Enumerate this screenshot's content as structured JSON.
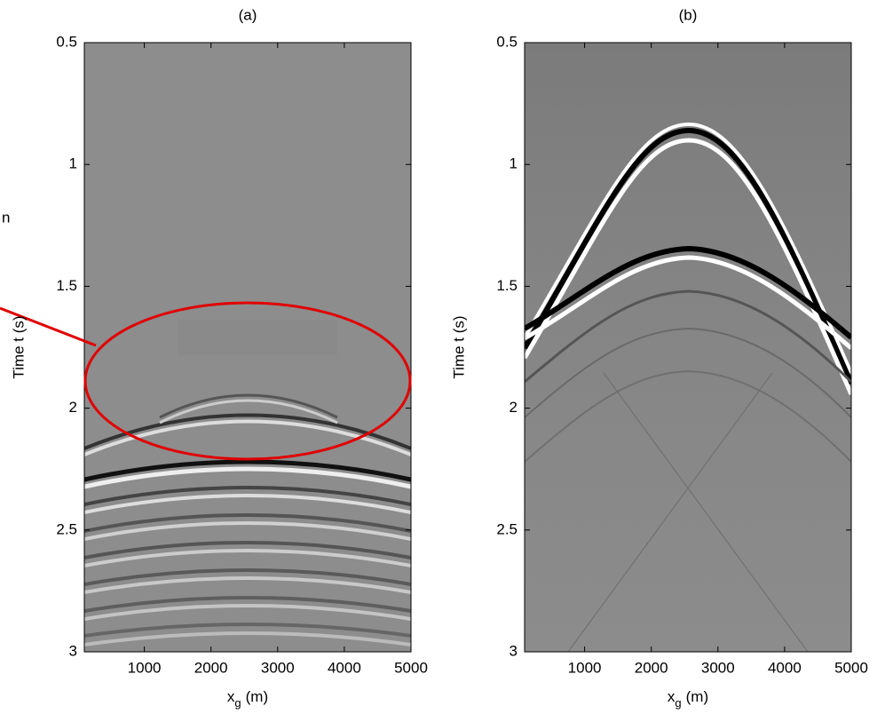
{
  "chart_data": [
    {
      "type": "image",
      "title": "(a)",
      "xlabel": "x",
      "xlabel_subscript": "g",
      "xlabel_unit": "(m)",
      "ylabel": "Time t (s)",
      "xlim": [
        100,
        5000
      ],
      "xticks": [
        1000,
        2000,
        3000,
        4000,
        5000
      ],
      "ylim": [
        0.5,
        3
      ],
      "yticks": [
        0.5,
        1,
        1.5,
        2,
        2.5,
        3
      ],
      "yreverse": true,
      "grid": false,
      "annotation": {
        "text": "n",
        "color": "#e00000"
      }
    },
    {
      "type": "image",
      "title": "(b)",
      "xlabel": "x",
      "xlabel_subscript": "g",
      "xlabel_unit": "(m)",
      "ylabel": "Time t (s)",
      "xlim": [
        100,
        5000
      ],
      "xticks": [
        1000,
        2000,
        3000,
        4000,
        5000
      ],
      "ylim": [
        0.5,
        3
      ],
      "yticks": [
        0.5,
        1,
        1.5,
        2,
        2.5,
        3
      ],
      "yreverse": true,
      "grid": false
    }
  ]
}
